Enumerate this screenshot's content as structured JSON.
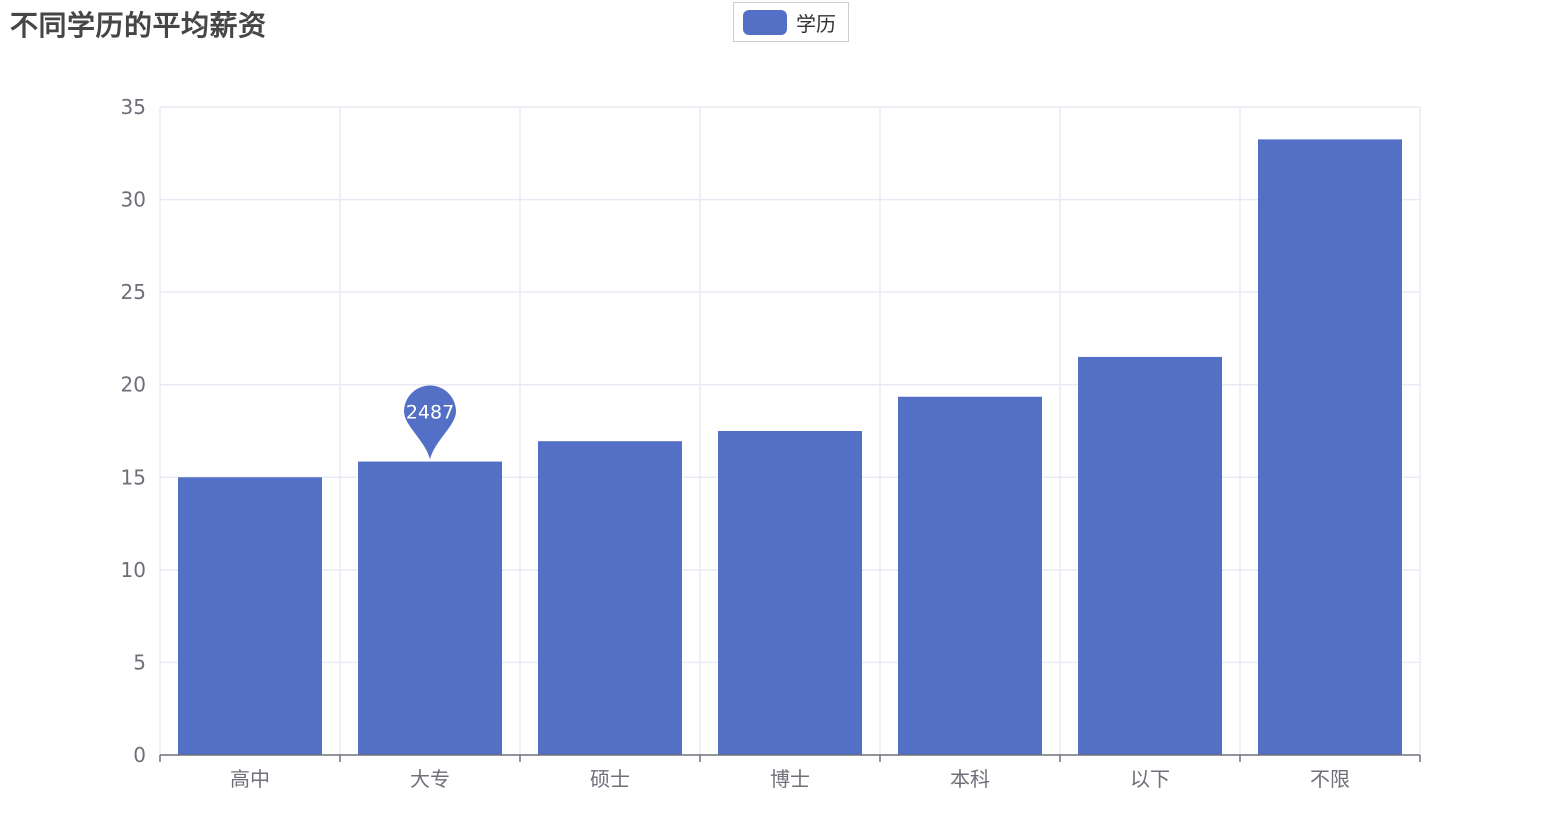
{
  "chart_data": {
    "type": "bar",
    "title": "不同学历的平均薪资",
    "legend": {
      "position": "top-center",
      "entries": [
        "学历"
      ]
    },
    "categories": [
      "高中",
      "大专",
      "硕士",
      "博士",
      "本科",
      "以下",
      "不限"
    ],
    "series": [
      {
        "name": "学历",
        "color": "#5470c6",
        "values": [
          15.0,
          15.85,
          16.95,
          17.5,
          19.35,
          21.5,
          33.25
        ]
      }
    ],
    "ylim": [
      0,
      35
    ],
    "yticks": [
      0,
      5,
      10,
      15,
      20,
      25,
      30,
      35
    ],
    "grid": true,
    "markPoint": {
      "category": "大专",
      "label": "2487"
    }
  }
}
